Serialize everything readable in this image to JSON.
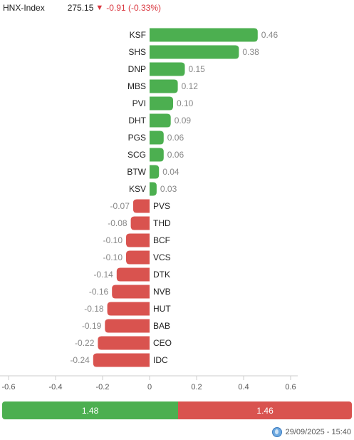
{
  "header": {
    "index_name": "HNX-Index",
    "index_value": "275.15",
    "arrow": "▼",
    "change_text": "-0.91 (-0.33%)"
  },
  "chart_data": {
    "type": "bar",
    "orientation": "horizontal",
    "categories": [
      "KSF",
      "SHS",
      "DNP",
      "MBS",
      "PVI",
      "DHT",
      "PGS",
      "SCG",
      "BTW",
      "KSV",
      "PVS",
      "THD",
      "BCF",
      "VCS",
      "DTK",
      "NVB",
      "HUT",
      "BAB",
      "CEO",
      "IDC"
    ],
    "values": [
      0.46,
      0.38,
      0.15,
      0.12,
      0.1,
      0.09,
      0.06,
      0.06,
      0.04,
      0.03,
      -0.07,
      -0.08,
      -0.1,
      -0.1,
      -0.14,
      -0.16,
      -0.18,
      -0.19,
      -0.22,
      -0.24
    ],
    "value_labels": [
      "0.46",
      "0.38",
      "0.15",
      "0.12",
      "0.10",
      "0.09",
      "0.06",
      "0.06",
      "0.04",
      "0.03",
      "-0.07",
      "-0.08",
      "-0.10",
      "-0.10",
      "-0.14",
      "-0.16",
      "-0.18",
      "-0.19",
      "-0.22",
      "-0.24"
    ],
    "xlim": [
      -0.6,
      0.6
    ],
    "xticks": [
      "-0.6",
      "-0.4",
      "-0.2",
      "0",
      "0.2",
      "0.4",
      "0.6"
    ],
    "xtick_values": [
      -0.6,
      -0.4,
      -0.2,
      0,
      0.2,
      0.4,
      0.6
    ],
    "positive_color": "#4caf50",
    "negative_color": "#d9534f",
    "grid": false
  },
  "summary": {
    "positive_total": "1.48",
    "negative_total": "1.46",
    "positive_color": "#4caf50",
    "negative_color": "#d9534f"
  },
  "footer": {
    "icon": "globe-icon",
    "timestamp": "29/09/2025 - 15:40"
  }
}
